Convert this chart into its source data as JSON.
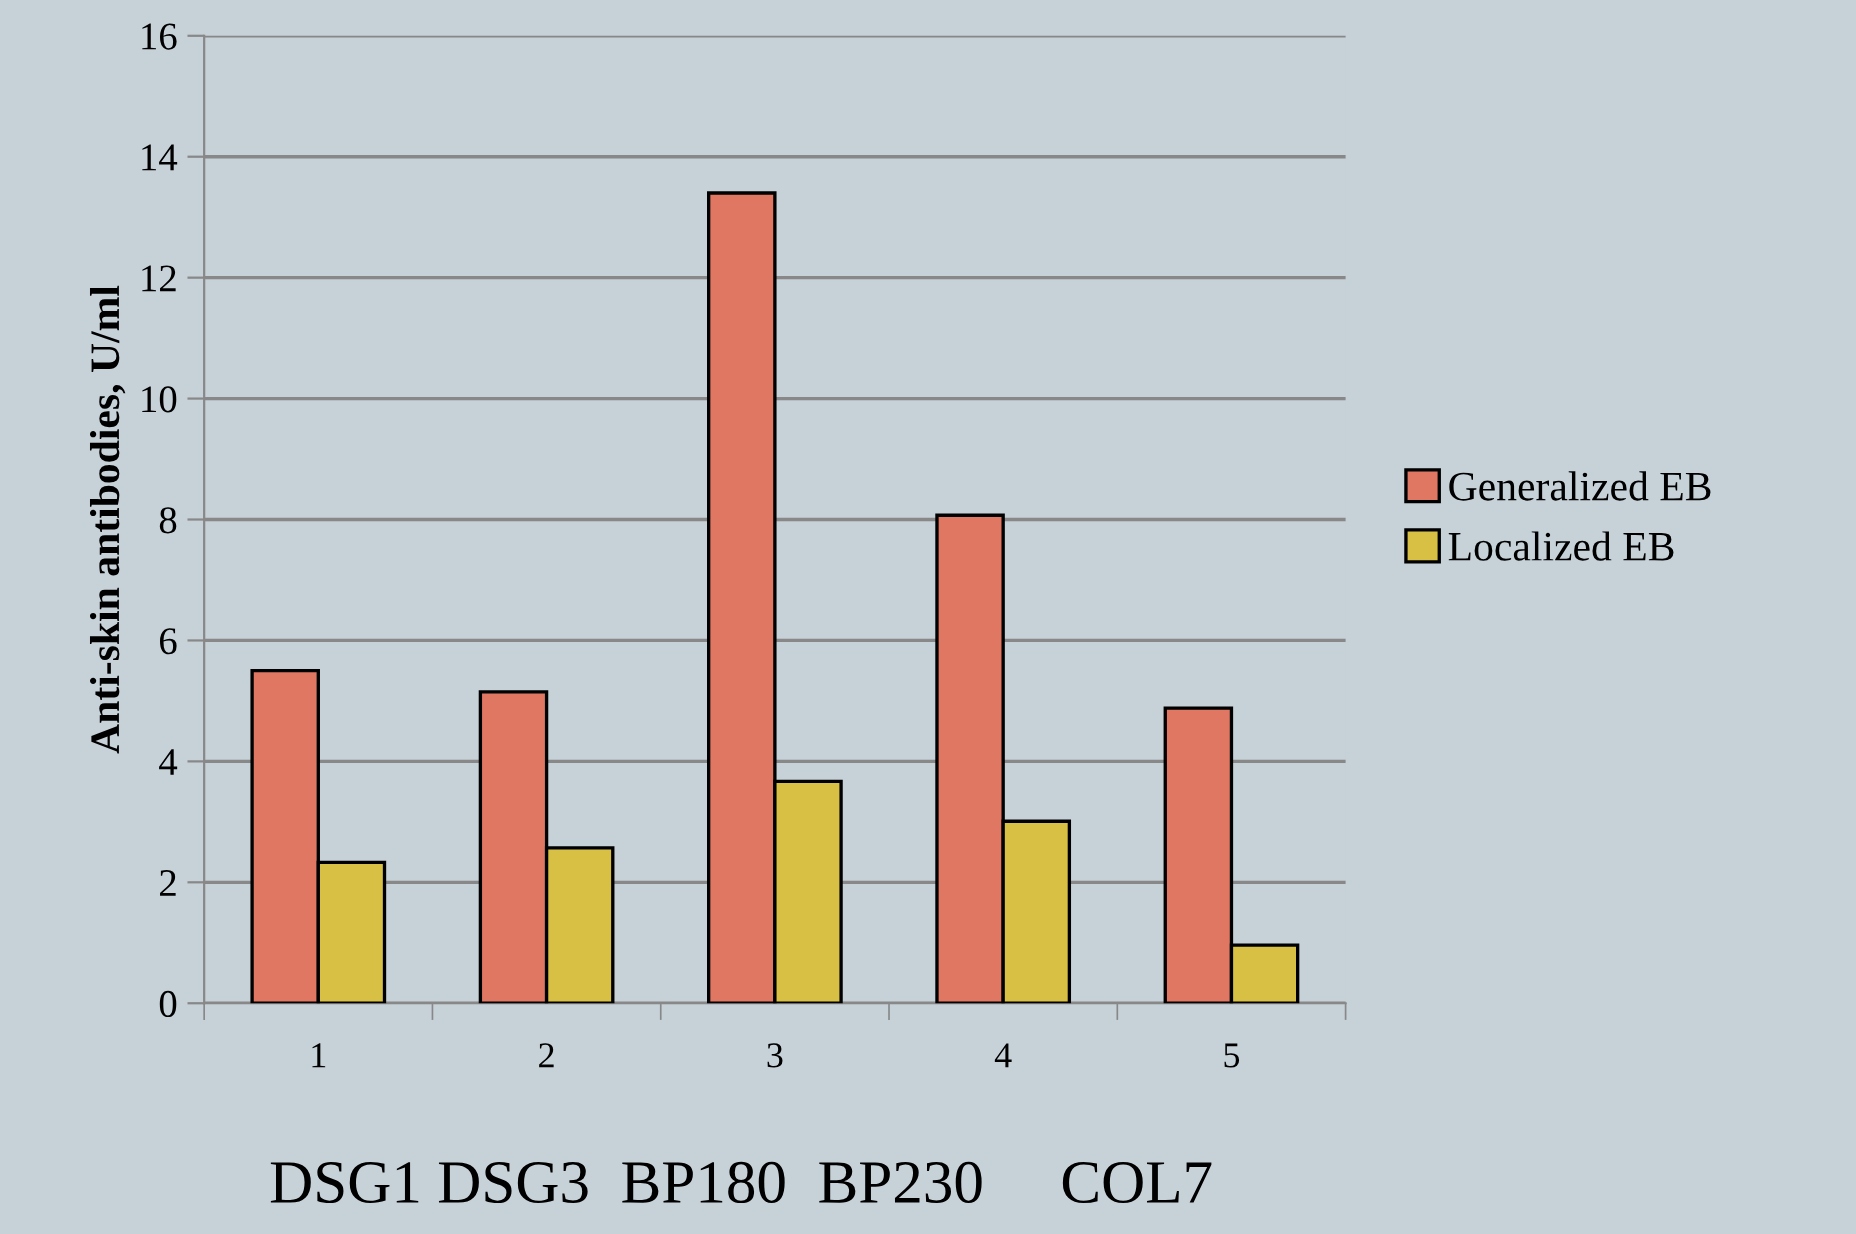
{
  "chart_data": {
    "type": "bar",
    "ylabel": "Anti-skin antibodies, U/ml",
    "categories": [
      "1",
      "2",
      "3",
      "4",
      "5"
    ],
    "series": [
      {
        "name": "Generalized EB",
        "color": "#df7763",
        "values": [
          5.5,
          5.15,
          13.4,
          8.07,
          4.88
        ]
      },
      {
        "name": "Localized EB",
        "color": "#d7c044",
        "values": [
          2.33,
          2.57,
          3.67,
          3.01,
          0.96
        ]
      }
    ],
    "ylim": [
      0,
      16
    ],
    "yticks": [
      0,
      2,
      4,
      6,
      8,
      10,
      12,
      14,
      16
    ],
    "grid": "y",
    "legend": "right",
    "annotations": [
      "DSG1 DSG3  BP180  BP230     COL7"
    ]
  }
}
